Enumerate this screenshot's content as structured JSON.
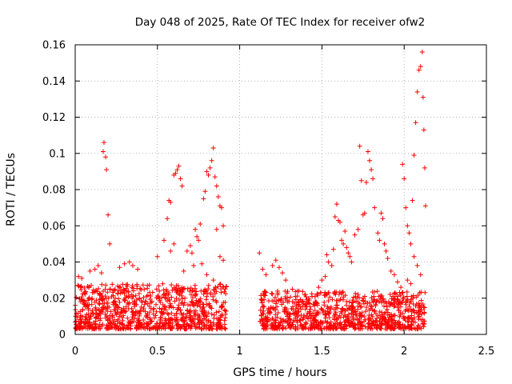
{
  "chart_data": {
    "type": "scatter",
    "title": "Day 048 of 2025, Rate Of TEC Index for receiver ofw2",
    "xlabel": "GPS time / hours",
    "ylabel": "ROTI / TECUs",
    "xlim": [
      0,
      2.5
    ],
    "ylim": [
      0,
      0.16
    ],
    "x_ticks": [
      0,
      0.5,
      1,
      1.5,
      2,
      2.5
    ],
    "x_tick_labels": [
      "0",
      "0.5",
      "1",
      "1.5",
      "2",
      "2.5"
    ],
    "y_ticks": [
      0,
      0.02,
      0.04,
      0.06,
      0.08,
      0.1,
      0.12,
      0.14,
      0.16
    ],
    "y_tick_labels": [
      "0",
      "0.02",
      "0.04",
      "0.06",
      "0.08",
      "0.1",
      "0.12",
      "0.14",
      "0.16"
    ],
    "grid": true,
    "legend": "none",
    "marker": "+",
    "series": [
      {
        "name": "ROTI",
        "color": "#ff0000",
        "points": [
          [
            0.17,
            0.101
          ],
          [
            0.175,
            0.106
          ],
          [
            0.185,
            0.098
          ],
          [
            0.19,
            0.091
          ],
          [
            0.2,
            0.066
          ],
          [
            0.21,
            0.05
          ],
          [
            0.02,
            0.032
          ],
          [
            0.04,
            0.031
          ],
          [
            0.09,
            0.035
          ],
          [
            0.12,
            0.036
          ],
          [
            0.14,
            0.038
          ],
          [
            0.16,
            0.034
          ],
          [
            0.27,
            0.037
          ],
          [
            0.3,
            0.039
          ],
          [
            0.33,
            0.04
          ],
          [
            0.35,
            0.038
          ],
          [
            0.38,
            0.036
          ],
          [
            0.5,
            0.043
          ],
          [
            0.54,
            0.052
          ],
          [
            0.56,
            0.064
          ],
          [
            0.57,
            0.074
          ],
          [
            0.58,
            0.073
          ],
          [
            0.6,
            0.088
          ],
          [
            0.61,
            0.089
          ],
          [
            0.62,
            0.091
          ],
          [
            0.63,
            0.093
          ],
          [
            0.64,
            0.086
          ],
          [
            0.65,
            0.082
          ],
          [
            0.6,
            0.05
          ],
          [
            0.58,
            0.046
          ],
          [
            0.68,
            0.046
          ],
          [
            0.7,
            0.049
          ],
          [
            0.71,
            0.045
          ],
          [
            0.73,
            0.058
          ],
          [
            0.74,
            0.054
          ],
          [
            0.75,
            0.052
          ],
          [
            0.76,
            0.061
          ],
          [
            0.78,
            0.075
          ],
          [
            0.79,
            0.079
          ],
          [
            0.8,
            0.09
          ],
          [
            0.81,
            0.088
          ],
          [
            0.82,
            0.092
          ],
          [
            0.83,
            0.096
          ],
          [
            0.84,
            0.103
          ],
          [
            0.85,
            0.087
          ],
          [
            0.86,
            0.082
          ],
          [
            0.87,
            0.076
          ],
          [
            0.88,
            0.071
          ],
          [
            0.89,
            0.07
          ],
          [
            0.9,
            0.06
          ],
          [
            0.86,
            0.058
          ],
          [
            0.88,
            0.043
          ],
          [
            0.9,
            0.041
          ],
          [
            0.8,
            0.033
          ],
          [
            0.84,
            0.03
          ],
          [
            0.77,
            0.039
          ],
          [
            0.72,
            0.038
          ],
          [
            0.66,
            0.035
          ],
          [
            1.12,
            0.045
          ],
          [
            1.14,
            0.036
          ],
          [
            1.16,
            0.033
          ],
          [
            1.2,
            0.038
          ],
          [
            1.22,
            0.041
          ],
          [
            1.24,
            0.037
          ],
          [
            1.26,
            0.034
          ],
          [
            1.28,
            0.03
          ],
          [
            1.32,
            0.025
          ],
          [
            1.36,
            0.024
          ],
          [
            1.4,
            0.022
          ],
          [
            1.44,
            0.021
          ],
          [
            1.48,
            0.026
          ],
          [
            1.5,
            0.03
          ],
          [
            1.52,
            0.032
          ],
          [
            1.53,
            0.044
          ],
          [
            1.54,
            0.04
          ],
          [
            1.56,
            0.038
          ],
          [
            1.57,
            0.047
          ],
          [
            1.58,
            0.065
          ],
          [
            1.59,
            0.072
          ],
          [
            1.6,
            0.063
          ],
          [
            1.61,
            0.062
          ],
          [
            1.62,
            0.052
          ],
          [
            1.63,
            0.05
          ],
          [
            1.64,
            0.057
          ],
          [
            1.65,
            0.048
          ],
          [
            1.66,
            0.045
          ],
          [
            1.67,
            0.043
          ],
          [
            1.68,
            0.04
          ],
          [
            1.7,
            0.055
          ],
          [
            1.72,
            0.058
          ],
          [
            1.73,
            0.104
          ],
          [
            1.74,
            0.085
          ],
          [
            1.75,
            0.066
          ],
          [
            1.76,
            0.067
          ],
          [
            1.77,
            0.084
          ],
          [
            1.78,
            0.101
          ],
          [
            1.79,
            0.096
          ],
          [
            1.8,
            0.091
          ],
          [
            1.81,
            0.086
          ],
          [
            1.82,
            0.07
          ],
          [
            1.84,
            0.056
          ],
          [
            1.85,
            0.052
          ],
          [
            1.86,
            0.067
          ],
          [
            1.87,
            0.064
          ],
          [
            1.88,
            0.05
          ],
          [
            1.89,
            0.046
          ],
          [
            1.9,
            0.042
          ],
          [
            1.92,
            0.035
          ],
          [
            1.94,
            0.033
          ],
          [
            1.96,
            0.029
          ],
          [
            1.98,
            0.026
          ],
          [
            1.99,
            0.094
          ],
          [
            2.0,
            0.086
          ],
          [
            2.01,
            0.07
          ],
          [
            2.02,
            0.06
          ],
          [
            2.03,
            0.056
          ],
          [
            2.04,
            0.05
          ],
          [
            2.05,
            0.074
          ],
          [
            2.06,
            0.099
          ],
          [
            2.07,
            0.117
          ],
          [
            2.08,
            0.134
          ],
          [
            2.09,
            0.146
          ],
          [
            2.1,
            0.148
          ],
          [
            2.11,
            0.156
          ],
          [
            2.115,
            0.131
          ],
          [
            2.12,
            0.113
          ],
          [
            2.125,
            0.092
          ],
          [
            2.13,
            0.071
          ],
          [
            2.06,
            0.043
          ],
          [
            2.08,
            0.038
          ],
          [
            2.1,
            0.033
          ],
          [
            2.02,
            0.03
          ],
          [
            2.04,
            0.028
          ]
        ]
      }
    ],
    "dense_clusters": [
      {
        "x_range": [
          0.0,
          0.92
        ],
        "y_range": [
          0.003,
          0.028
        ],
        "count": 900
      },
      {
        "x_range": [
          1.12,
          2.13
        ],
        "y_range": [
          0.003,
          0.024
        ],
        "count": 900
      }
    ]
  }
}
